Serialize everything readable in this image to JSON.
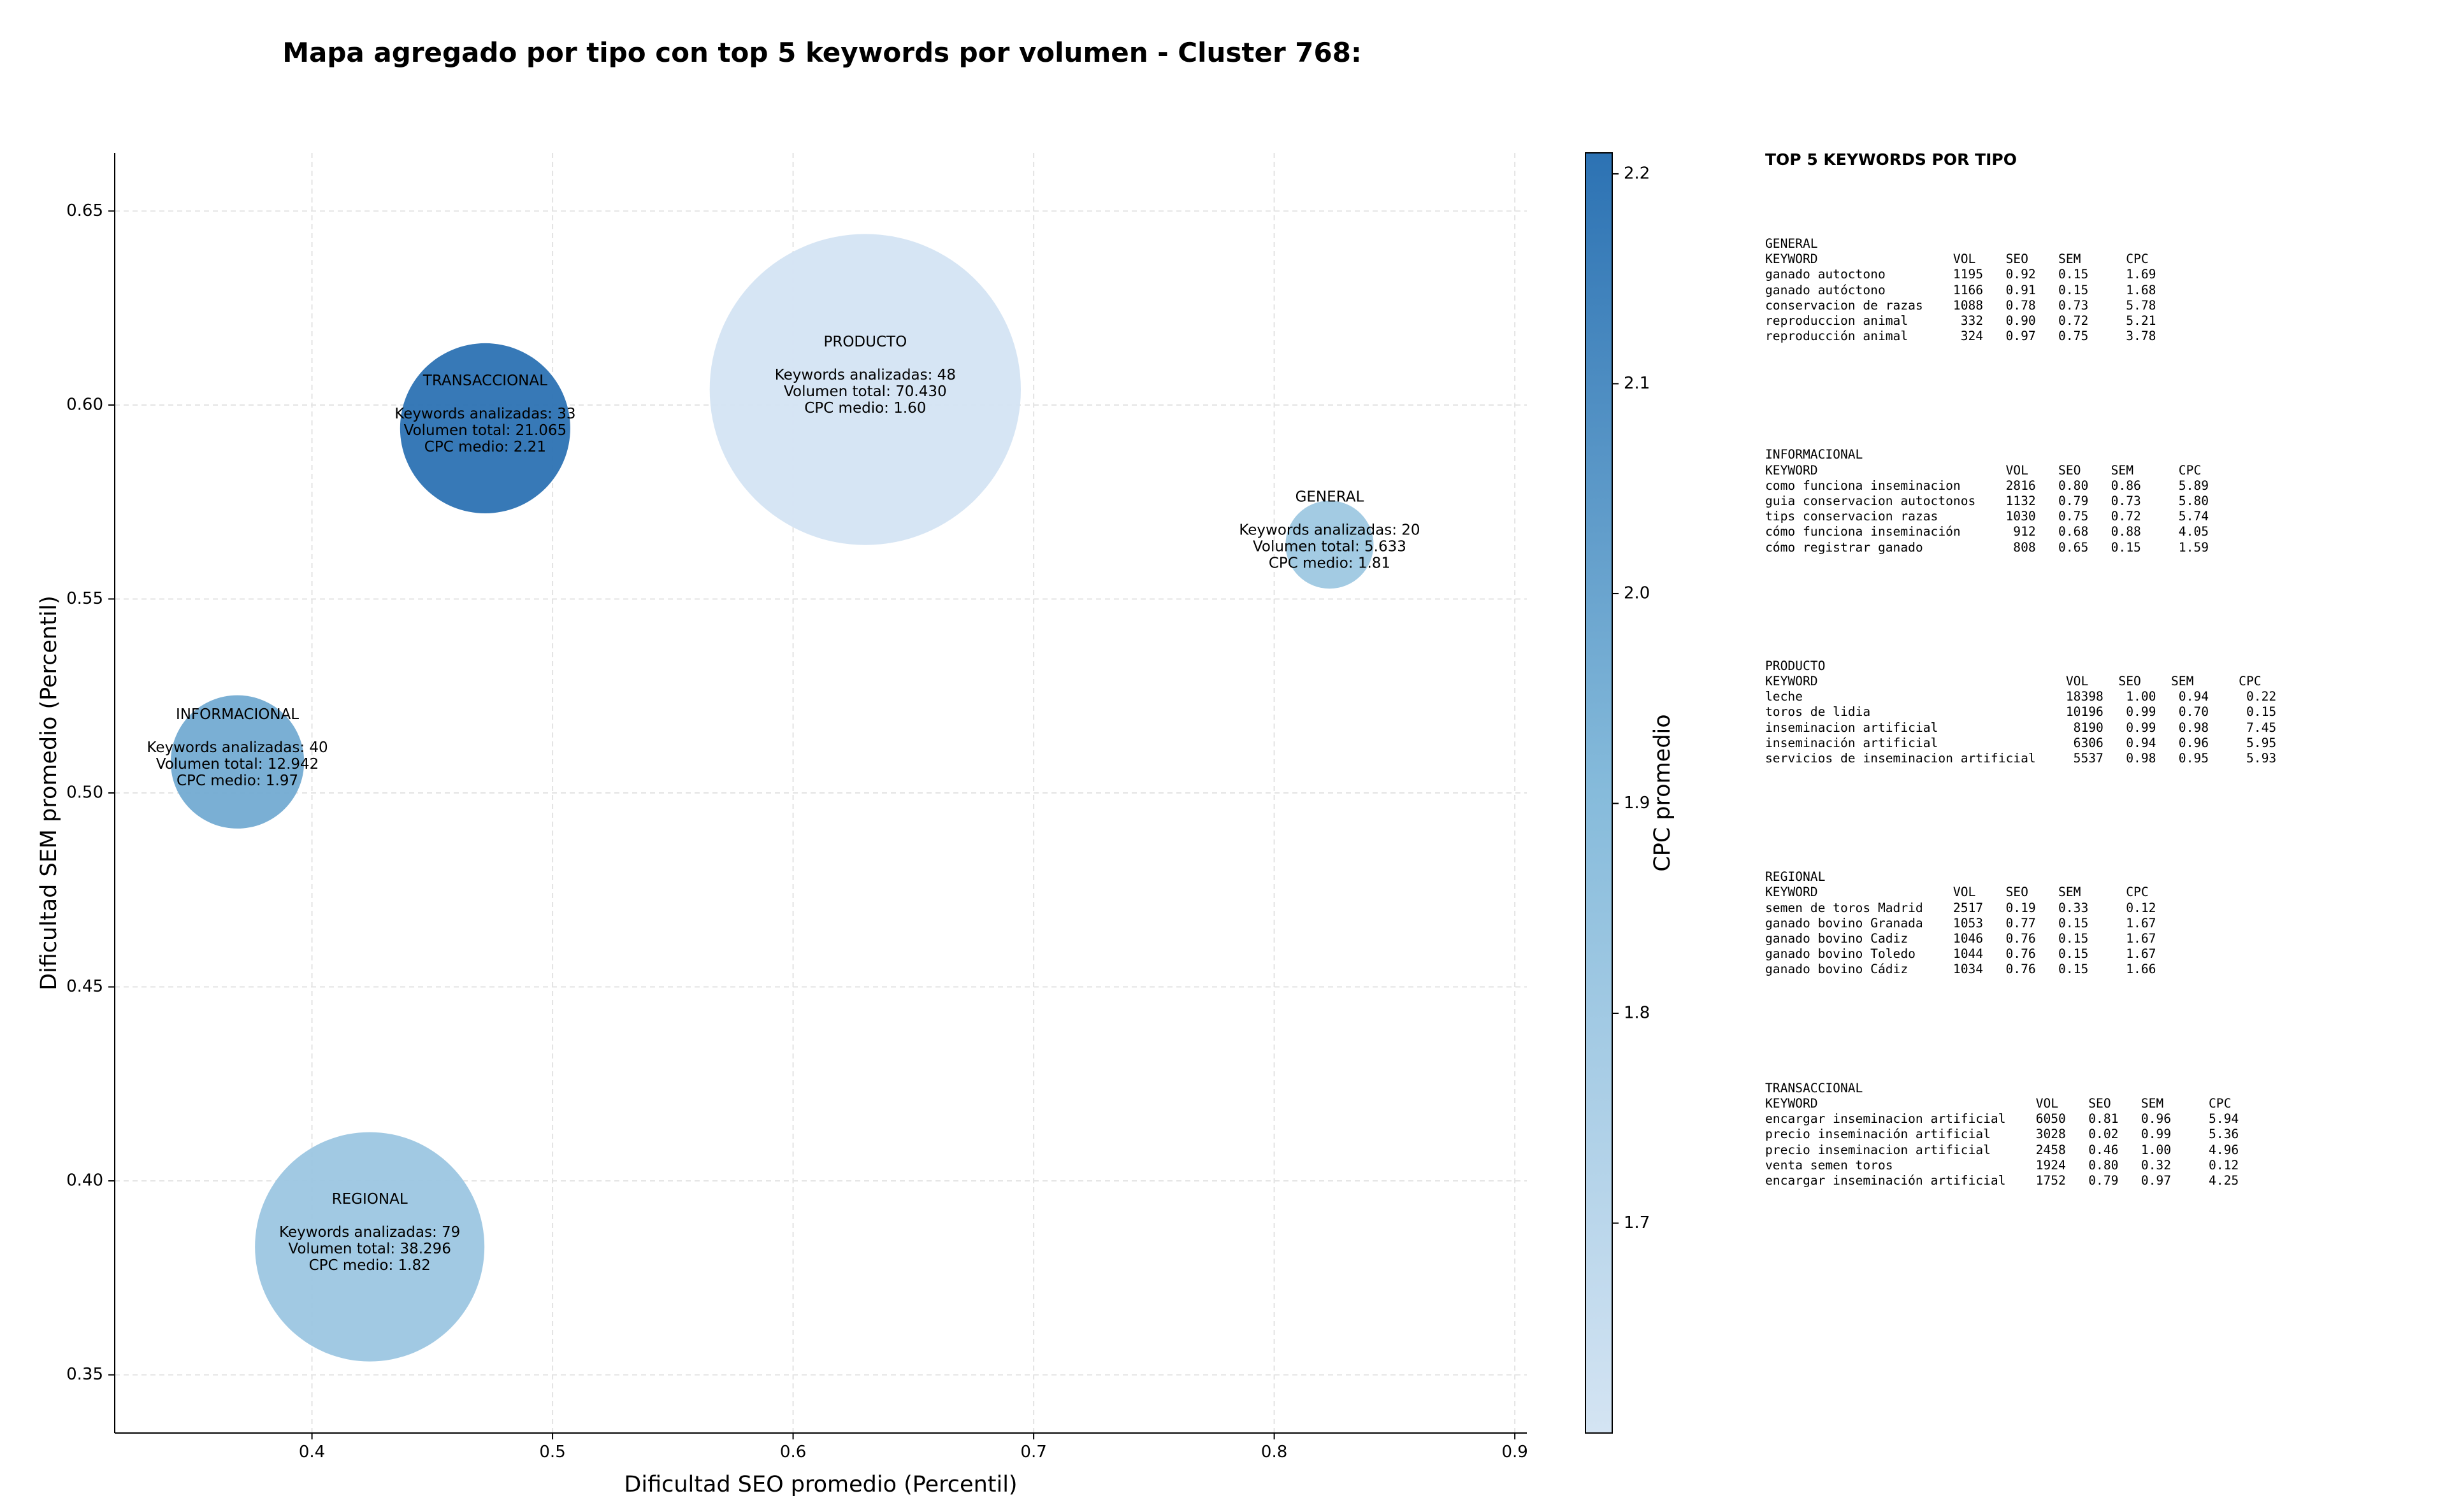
{
  "title": "Mapa agregado por tipo con top 5 keywords por volumen - Cluster 768:",
  "chart_data": {
    "type": "scatter",
    "title": "Mapa agregado por tipo con top 5 keywords por volumen - Cluster 768:",
    "xlabel": "Dificultad SEO promedio (Percentil)",
    "ylabel": "Dificultad SEM promedio (Percentil)",
    "xlim": [
      0.318,
      0.905
    ],
    "ylim": [
      0.335,
      0.665
    ],
    "xticks": [
      "0.4",
      "0.5",
      "0.6",
      "0.7",
      "0.8",
      "0.9"
    ],
    "yticks": [
      "0.35",
      "0.40",
      "0.45",
      "0.50",
      "0.55",
      "0.60",
      "0.65"
    ],
    "grid": true,
    "colorbar": {
      "label": "CPC promedio",
      "range": [
        1.6,
        2.21
      ],
      "ticks": [
        "1.7",
        "1.8",
        "1.9",
        "2.0",
        "2.1",
        "2.2"
      ],
      "color_low": "#d4e4f3",
      "color_high": "#2c72b3"
    },
    "points": [
      {
        "name": "TRANSACCIONAL",
        "x": 0.472,
        "y": 0.594,
        "keywords": 33,
        "volume": 21065,
        "cpc": 2.21,
        "label_lines": [
          "TRANSACCIONAL",
          "",
          "Keywords analizadas: 33",
          "Volumen total: 21.065",
          "CPC medio: 2.21"
        ]
      },
      {
        "name": "PRODUCTO",
        "x": 0.63,
        "y": 0.604,
        "keywords": 48,
        "volume": 70430,
        "cpc": 1.6,
        "label_lines": [
          "PRODUCTO",
          "",
          "Keywords analizadas: 48",
          "Volumen total: 70.430",
          "CPC medio: 1.60"
        ]
      },
      {
        "name": "GENERAL",
        "x": 0.823,
        "y": 0.564,
        "keywords": 20,
        "volume": 5633,
        "cpc": 1.81,
        "label_lines": [
          "GENERAL",
          "",
          "Keywords analizadas: 20",
          "Volumen total: 5.633",
          "CPC medio: 1.81"
        ]
      },
      {
        "name": "INFORMACIONAL",
        "x": 0.369,
        "y": 0.508,
        "keywords": 40,
        "volume": 12942,
        "cpc": 1.97,
        "label_lines": [
          "INFORMACIONAL",
          "",
          "Keywords analizadas: 40",
          "Volumen total: 12.942",
          "CPC medio: 1.97"
        ]
      },
      {
        "name": "REGIONAL",
        "x": 0.424,
        "y": 0.383,
        "keywords": 79,
        "volume": 38296,
        "cpc": 1.82,
        "label_lines": [
          "REGIONAL",
          "",
          "Keywords analizadas: 79",
          "Volumen total: 38.296",
          "CPC medio: 1.82"
        ]
      }
    ]
  },
  "side_panel": {
    "title": "TOP 5 KEYWORDS POR TIPO",
    "blocks": [
      {
        "id": "general",
        "text": "GENERAL\nKEYWORD                  VOL    SEO    SEM      CPC\nganado autoctono         1195   0.92   0.15     1.69\nganado autóctono         1166   0.91   0.15     1.68\nconservacion de razas    1088   0.78   0.73     5.78\nreproduccion animal       332   0.90   0.72     5.21\nreproducción animal       324   0.97   0.75     3.78"
      },
      {
        "id": "informacional",
        "text": "INFORMACIONAL\nKEYWORD                         VOL    SEO    SEM      CPC\ncomo funciona inseminacion      2816   0.80   0.86     5.89\nguia conservacion autoctonos    1132   0.79   0.73     5.80\ntips conservacion razas         1030   0.75   0.72     5.74\ncómo funciona inseminación       912   0.68   0.88     4.05\ncómo registrar ganado            808   0.65   0.15     1.59"
      },
      {
        "id": "producto",
        "text": "PRODUCTO\nKEYWORD                                 VOL    SEO    SEM      CPC\nleche                                   18398   1.00   0.94     0.22\ntoros de lidia                          10196   0.99   0.70     0.15\ninseminacion artificial                  8190   0.99   0.98     7.45\ninseminación artificial                  6306   0.94   0.96     5.95\nservicios de inseminacion artificial     5537   0.98   0.95     5.93"
      },
      {
        "id": "regional",
        "text": "REGIONAL\nKEYWORD                  VOL    SEO    SEM      CPC\nsemen de toros Madrid    2517   0.19   0.33     0.12\nganado bovino Granada    1053   0.77   0.15     1.67\nganado bovino Cadiz      1046   0.76   0.15     1.67\nganado bovino Toledo     1044   0.76   0.15     1.67\nganado bovino Cádiz      1034   0.76   0.15     1.66"
      },
      {
        "id": "transaccional",
        "text": "TRANSACCIONAL\nKEYWORD                             VOL    SEO    SEM      CPC\nencargar inseminacion artificial    6050   0.81   0.96     5.94\nprecio inseminación artificial      3028   0.02   0.99     5.36\nprecio inseminacion artificial      2458   0.46   1.00     4.96\nventa semen toros                   1924   0.80   0.32     0.12\nencargar inseminación artificial    1752   0.79   0.97     4.25"
      }
    ]
  }
}
